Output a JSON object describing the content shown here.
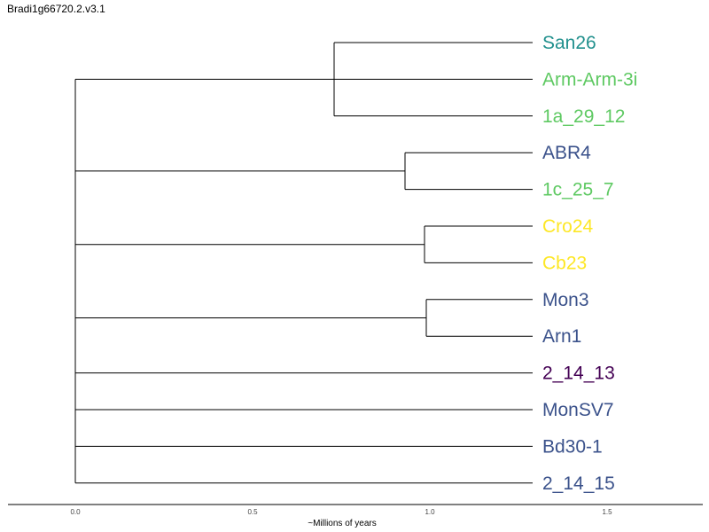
{
  "title": "Bradi1g66720.2.v3.1",
  "axis": {
    "label": "~Millions of years",
    "ticks": [
      0.0,
      0.5,
      1.0,
      1.5
    ],
    "tick_labels": [
      "0.0",
      "0.5",
      "1.0",
      "1.5"
    ],
    "range": [
      -0.19,
      1.77
    ]
  },
  "leaf_tip_x": 1.29,
  "leaves": [
    {
      "name": "San26",
      "color": "#21908d"
    },
    {
      "name": "Arm-Arm-3i",
      "color": "#5ec962"
    },
    {
      "name": "1a_29_12",
      "color": "#5ec962"
    },
    {
      "name": "ABR4",
      "color": "#3b528b"
    },
    {
      "name": "1c_25_7",
      "color": "#5ec962"
    },
    {
      "name": "Cro24",
      "color": "#fde725"
    },
    {
      "name": "Cb23",
      "color": "#fde725"
    },
    {
      "name": "Mon3",
      "color": "#3b528b"
    },
    {
      "name": "Arn1",
      "color": "#3b528b"
    },
    {
      "name": "2_14_13",
      "color": "#440154"
    },
    {
      "name": "MonSV7",
      "color": "#3b528b"
    },
    {
      "name": "Bd30-1",
      "color": "#3b528b"
    },
    {
      "name": "2_14_15",
      "color": "#3b528b"
    }
  ],
  "tree": {
    "height": 0.0,
    "children": [
      {
        "height": 0.73,
        "children": [
          {
            "leaf": 0
          },
          {
            "leaf": 1
          },
          {
            "leaf": 2
          }
        ]
      },
      {
        "height": 0.93,
        "children": [
          {
            "leaf": 3
          },
          {
            "leaf": 4
          }
        ]
      },
      {
        "height": 0.985,
        "children": [
          {
            "leaf": 5
          },
          {
            "leaf": 6
          }
        ]
      },
      {
        "height": 0.99,
        "children": [
          {
            "leaf": 7
          },
          {
            "leaf": 8
          }
        ]
      },
      {
        "leaf": 9
      },
      {
        "leaf": 10
      },
      {
        "leaf": 11
      },
      {
        "leaf": 12
      }
    ]
  }
}
